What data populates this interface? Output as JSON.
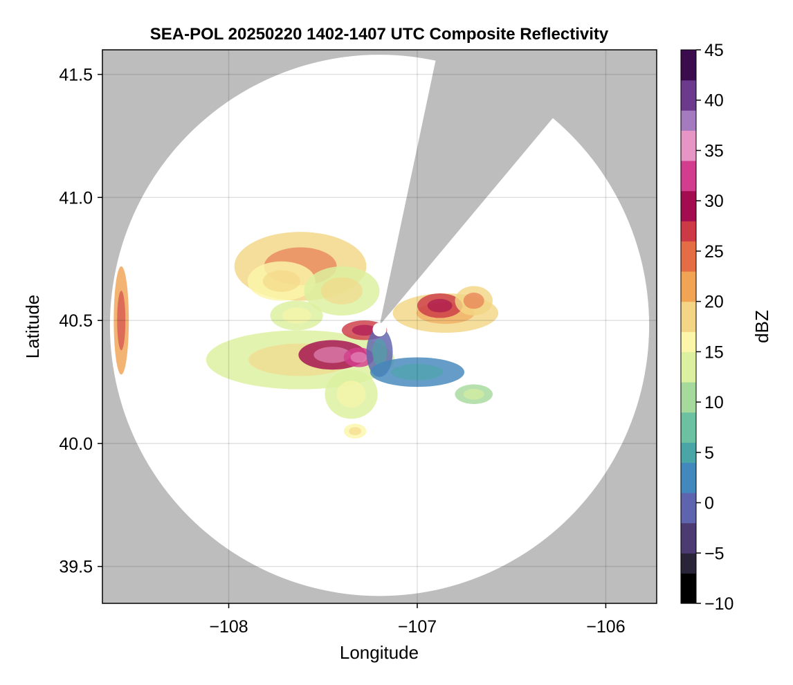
{
  "chart_data": {
    "type": "heatmap",
    "title": "SEA-POL 20250220 1402-1407 UTC Composite Reflectivity",
    "xlabel": "Longitude",
    "ylabel": "Latitude",
    "xlim": [
      -108.67,
      -105.73
    ],
    "ylim": [
      39.35,
      41.6
    ],
    "xticks": [
      -108,
      -107,
      -106
    ],
    "xtick_labels": [
      "−108",
      "−107",
      "−106"
    ],
    "yticks": [
      39.5,
      40.0,
      40.5,
      41.0,
      41.5
    ],
    "ytick_labels": [
      "39.5",
      "40.0",
      "40.5",
      "41.0",
      "41.5"
    ],
    "grid": true,
    "background_color": "#bdbdbd",
    "radar": {
      "center_lon": -107.2,
      "center_lat": 40.48,
      "range_lon": 1.43,
      "range_lat": 1.1,
      "blocked_sector_deg": [
        50,
        78
      ]
    },
    "colorbar": {
      "label": "dBZ",
      "range": [
        -10,
        45
      ],
      "ticks": [
        -10,
        -5,
        0,
        5,
        10,
        15,
        20,
        25,
        30,
        35,
        40,
        45
      ],
      "tick_labels": [
        "−10",
        "−5",
        "0",
        "5",
        "10",
        "15",
        "20",
        "25",
        "30",
        "35",
        "40",
        "45"
      ],
      "step": 1,
      "colors": [
        "#000000",
        "#2a2438",
        "#4b3b72",
        "#5e64ad",
        "#4388bc",
        "#49a5a6",
        "#6cc2a0",
        "#a6da9c",
        "#dcf09f",
        "#fbf6a9",
        "#f3d585",
        "#f0a454",
        "#e56d46",
        "#cd3a46",
        "#a30d50",
        "#d33d8e",
        "#e795c4",
        "#a57bbf",
        "#6c3a8c",
        "#3b0c4d"
      ]
    },
    "echo_regions": [
      {
        "lon": -107.62,
        "lat": 40.72,
        "rlon": 0.35,
        "rlat": 0.14,
        "dbz": 20
      },
      {
        "lon": -107.72,
        "lat": 40.66,
        "rlon": 0.18,
        "rlat": 0.08,
        "dbz": 16
      },
      {
        "lon": -107.4,
        "lat": 40.62,
        "rlon": 0.2,
        "rlat": 0.1,
        "dbz": 14
      },
      {
        "lon": -107.64,
        "lat": 40.52,
        "rlon": 0.14,
        "rlat": 0.06,
        "dbz": 12
      },
      {
        "lon": -107.62,
        "lat": 40.34,
        "rlon": 0.5,
        "rlat": 0.12,
        "dbz": 14
      },
      {
        "lon": -107.45,
        "lat": 40.36,
        "rlon": 0.18,
        "rlat": 0.06,
        "dbz": 30
      },
      {
        "lon": -107.31,
        "lat": 40.35,
        "rlon": 0.08,
        "rlat": 0.04,
        "dbz": 32
      },
      {
        "lon": -107.28,
        "lat": 40.46,
        "rlon": 0.12,
        "rlat": 0.04,
        "dbz": 26
      },
      {
        "lon": -107.2,
        "lat": 40.37,
        "rlon": 0.07,
        "rlat": 0.1,
        "dbz": 0
      },
      {
        "lon": -107.0,
        "lat": 40.29,
        "rlon": 0.25,
        "rlat": 0.06,
        "dbz": 2
      },
      {
        "lon": -107.35,
        "lat": 40.2,
        "rlon": 0.14,
        "rlat": 0.1,
        "dbz": 12
      },
      {
        "lon": -106.85,
        "lat": 40.53,
        "rlon": 0.28,
        "rlat": 0.08,
        "dbz": 18
      },
      {
        "lon": -106.88,
        "lat": 40.56,
        "rlon": 0.12,
        "rlat": 0.05,
        "dbz": 27
      },
      {
        "lon": -106.7,
        "lat": 40.58,
        "rlon": 0.1,
        "rlat": 0.06,
        "dbz": 20
      },
      {
        "lon": -106.7,
        "lat": 40.2,
        "rlon": 0.1,
        "rlat": 0.04,
        "dbz": 10
      },
      {
        "lon": -107.33,
        "lat": 40.05,
        "rlon": 0.06,
        "rlat": 0.03,
        "dbz": 15
      },
      {
        "lon": -108.57,
        "lat": 40.5,
        "rlon": 0.04,
        "rlat": 0.22,
        "dbz": 22
      }
    ]
  }
}
